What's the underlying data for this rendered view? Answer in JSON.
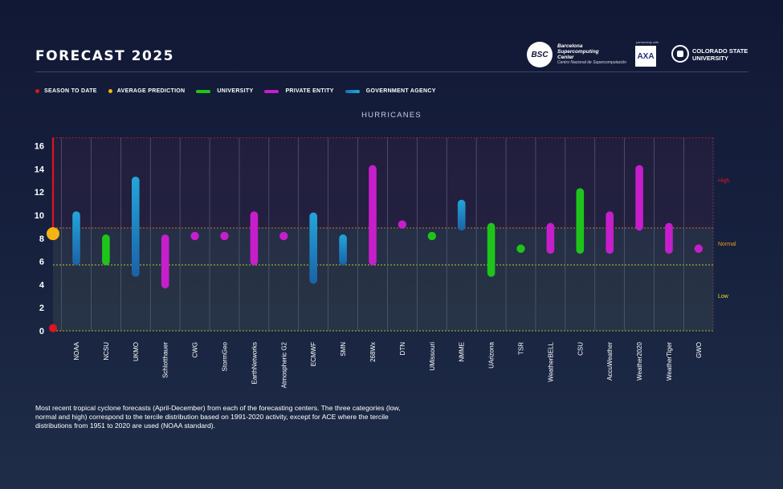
{
  "header": {
    "title": "FORECAST 2025",
    "bsc_logo": {
      "mark": "BSC",
      "line1": "Barcelona",
      "line2": "Supercomputing",
      "line3": "Center",
      "line4": "Centro Nacional de Supercomputación"
    },
    "axa_logo": {
      "caption": "partnership with",
      "mark": "AXA"
    },
    "csu_logo": {
      "line1": "COLORADO STATE",
      "line2": "UNIVERSITY"
    }
  },
  "legend": [
    {
      "label": "SEASON TO DATE",
      "kind": "dot",
      "color": "#e0131f"
    },
    {
      "label": "AVERAGE PREDICTION",
      "kind": "dot",
      "color": "#f5b414"
    },
    {
      "label": "UNIVERSITY",
      "kind": "bar",
      "color": "#1fc41a"
    },
    {
      "label": "PRIVATE ENTITY",
      "kind": "bar",
      "color": "#c71ecb"
    },
    {
      "label": "GOVERNMENT AGENCY",
      "kind": "bar",
      "color": "#1a8fcf"
    }
  ],
  "chart_data": {
    "type": "range",
    "title": "HURRICANES",
    "ylim": [
      0,
      16.7
    ],
    "yticks": [
      0,
      2,
      4,
      6,
      8,
      10,
      12,
      14,
      16
    ],
    "grid": true,
    "bands": [
      {
        "label": "Low",
        "from": 0,
        "to": 5.7,
        "color": "#e6e21e"
      },
      {
        "label": "Normal",
        "from": 5.7,
        "to": 8.9,
        "color": "#f29a1a"
      },
      {
        "label": "High",
        "from": 8.9,
        "to": 16.7,
        "color": "#e0131f"
      }
    ],
    "season_to_date": 0.3,
    "average_prediction": 8.4,
    "colors": {
      "university": "#1fc41a",
      "private": "#c71ecb",
      "government": "#1a8fcf"
    },
    "forecasts": [
      {
        "center": "NOAA",
        "type": "government",
        "low": 6,
        "high": 10
      },
      {
        "center": "NCSU",
        "type": "university",
        "low": 6,
        "high": 8
      },
      {
        "center": "UKMO",
        "type": "government",
        "low": 5,
        "high": 13
      },
      {
        "center": "Schlotthauer",
        "type": "private",
        "low": 4,
        "high": 8
      },
      {
        "center": "CWG",
        "type": "private",
        "low": 8.2,
        "high": 8.2
      },
      {
        "center": "StormGeo",
        "type": "private",
        "low": 8.2,
        "high": 8.2
      },
      {
        "center": "EarthNetworks",
        "type": "private",
        "low": 6,
        "high": 10
      },
      {
        "center": "Atmospheric G2",
        "type": "private",
        "low": 8.2,
        "high": 8.2
      },
      {
        "center": "ECMWF",
        "type": "government",
        "low": 4.4,
        "high": 9.9
      },
      {
        "center": "SMN",
        "type": "government",
        "low": 6,
        "high": 8
      },
      {
        "center": "268Wx",
        "type": "private",
        "low": 6,
        "high": 14
      },
      {
        "center": "DTN",
        "type": "private",
        "low": 9.2,
        "high": 9.2
      },
      {
        "center": "UMissouri",
        "type": "university",
        "low": 8.2,
        "high": 8.2
      },
      {
        "center": "NMME",
        "type": "government",
        "low": 9,
        "high": 11
      },
      {
        "center": "UArizona",
        "type": "university",
        "low": 5,
        "high": 9
      },
      {
        "center": "TSR",
        "type": "university",
        "low": 7.1,
        "high": 7.1
      },
      {
        "center": "WeatherBELL",
        "type": "private",
        "low": 7,
        "high": 9
      },
      {
        "center": "CSU",
        "type": "university",
        "low": 7,
        "high": 12
      },
      {
        "center": "AccuWeather",
        "type": "private",
        "low": 7,
        "high": 10
      },
      {
        "center": "Weather2020",
        "type": "private",
        "low": 9,
        "high": 14
      },
      {
        "center": "WeatherTiger",
        "type": "private",
        "low": 7,
        "high": 9
      },
      {
        "center": "GWO",
        "type": "private",
        "low": 7.1,
        "high": 7.1
      }
    ]
  },
  "footnote": "Most recent tropical cyclone forecasts (April-December) from each of the forecasting centers. The three categories (low, normal and high) correspond to the tercile distribution based on 1991-2020 activity, except for ACE where the tercile distributions from 1951 to 2020 are used (NOAA standard)."
}
